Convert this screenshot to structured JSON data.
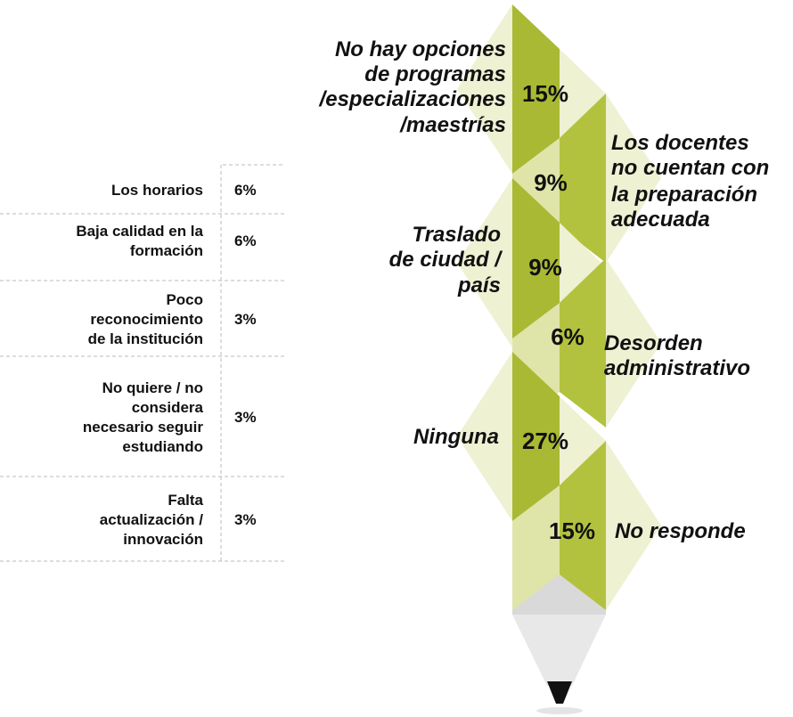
{
  "table": {
    "rows": [
      {
        "label": [
          "Los horarios"
        ],
        "value": "6%"
      },
      {
        "label": [
          "Baja calidad en la",
          "formación"
        ],
        "value": "6%"
      },
      {
        "label": [
          "Poco",
          "reconocimiento",
          "de la institución"
        ],
        "value": "3%"
      },
      {
        "label": [
          "No quiere / no",
          "considera",
          "necesario seguir",
          "estudiando"
        ],
        "value": "3%"
      },
      {
        "label": [
          "Falta",
          "actualización /",
          "innovación"
        ],
        "value": "3%"
      }
    ]
  },
  "pencil": {
    "segments": [
      {
        "label": [
          "No hay opciones",
          "de programas",
          "/especializaciones",
          "/maestrías"
        ],
        "value": "15%"
      },
      {
        "label": [
          "Los docentes",
          "no cuentan con",
          "la preparación",
          "adecuada"
        ],
        "value": "9%"
      },
      {
        "label": [
          "Traslado",
          "de ciudad /",
          "país"
        ],
        "value": "9%"
      },
      {
        "label": [
          "Desorden",
          "administrativo"
        ],
        "value": "6%"
      },
      {
        "label": [
          "Ninguna"
        ],
        "value": "27%"
      },
      {
        "label": [
          "No responde"
        ],
        "value": "15%"
      }
    ]
  }
}
